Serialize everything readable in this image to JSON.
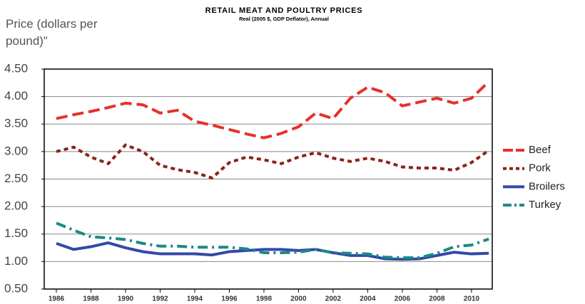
{
  "chart_data": {
    "type": "line",
    "title": "RETAIL MEAT AND POULTRY PRICES",
    "subtitle": "Real (2005 $, GDP Deflator), Annual",
    "y_label": "Price (dollars per pound)”",
    "x": [
      1986,
      1987,
      1988,
      1989,
      1990,
      1991,
      1992,
      1993,
      1994,
      1995,
      1996,
      1997,
      1998,
      1999,
      2000,
      2001,
      2002,
      2003,
      2004,
      2005,
      2006,
      2007,
      2008,
      2009,
      2010,
      2011
    ],
    "series": [
      {
        "name": "Beef",
        "color": "#e8302a",
        "dash": "long-dash",
        "values": [
          3.6,
          3.67,
          3.73,
          3.8,
          3.88,
          3.85,
          3.7,
          3.75,
          3.55,
          3.48,
          3.4,
          3.32,
          3.25,
          3.33,
          3.45,
          3.7,
          3.6,
          3.97,
          4.17,
          4.07,
          3.83,
          3.9,
          3.97,
          3.88,
          3.97,
          4.27
        ]
      },
      {
        "name": "Pork",
        "color": "#8b2318",
        "dash": "short-dash",
        "values": [
          3.0,
          3.08,
          2.9,
          2.78,
          3.12,
          3.0,
          2.75,
          2.67,
          2.62,
          2.52,
          2.8,
          2.9,
          2.85,
          2.78,
          2.9,
          2.98,
          2.88,
          2.82,
          2.88,
          2.82,
          2.72,
          2.7,
          2.7,
          2.66,
          2.8,
          3.02
        ]
      },
      {
        "name": "Broilers",
        "color": "#3348a8",
        "dash": "solid",
        "values": [
          1.33,
          1.22,
          1.27,
          1.34,
          1.25,
          1.18,
          1.14,
          1.14,
          1.14,
          1.12,
          1.18,
          1.2,
          1.22,
          1.22,
          1.2,
          1.22,
          1.16,
          1.11,
          1.11,
          1.05,
          1.04,
          1.05,
          1.11,
          1.17,
          1.14,
          1.15
        ]
      },
      {
        "name": "Turkey",
        "color": "#1a8a84",
        "dash": "dash-dot",
        "values": [
          1.7,
          1.57,
          1.45,
          1.43,
          1.4,
          1.33,
          1.28,
          1.28,
          1.26,
          1.26,
          1.26,
          1.23,
          1.16,
          1.16,
          1.17,
          1.22,
          1.16,
          1.15,
          1.14,
          1.08,
          1.07,
          1.07,
          1.15,
          1.27,
          1.3,
          1.41
        ]
      }
    ],
    "xlim": [
      1985.3,
      2011.2
    ],
    "xticks": [
      1986,
      1988,
      1990,
      1992,
      1994,
      1996,
      1998,
      2000,
      2002,
      2004,
      2006,
      2008,
      2010
    ],
    "ylim": [
      0.5,
      4.5
    ],
    "yticks": [
      {
        "value": 0.5,
        "label": "0.50"
      },
      {
        "value": 1,
        "label": "1.00"
      },
      {
        "value": 1.5,
        "label": "1.50"
      },
      {
        "value": 2,
        "label": "2.00"
      },
      {
        "value": 2.5,
        "label": "2.50"
      },
      {
        "value": 3,
        "label": "3.00"
      },
      {
        "value": 3.5,
        "label": "3.50"
      },
      {
        "value": 4,
        "label": "4.00"
      },
      {
        "value": 4.5,
        "label": "4.50"
      }
    ],
    "grid": true,
    "legend": "right"
  }
}
